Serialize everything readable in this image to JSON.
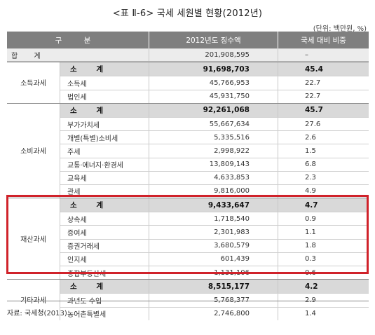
{
  "title": "<표 Ⅱ-6> 국세 세원별 현황(2012년)",
  "unit": "(단위: 백만원, %)",
  "header": {
    "division": "구 분",
    "amount": "2012년도 징수액",
    "ratio": "국세 대비 비중"
  },
  "grand_total": {
    "label": "합 계",
    "amount": "201,908,595",
    "ratio": "–"
  },
  "sections": [
    {
      "name": "소득과세",
      "rows": [
        {
          "item": "소 계",
          "amount": "91,698,703",
          "ratio": "45.4",
          "subtotal": true
        },
        {
          "item": "소득세",
          "amount": "45,766,953",
          "ratio": "22.7"
        },
        {
          "item": "법인세",
          "amount": "45,931,750",
          "ratio": "22.7"
        }
      ]
    },
    {
      "name": "소비과세",
      "rows": [
        {
          "item": "소 계",
          "amount": "92,261,068",
          "ratio": "45.7",
          "subtotal": true
        },
        {
          "item": "부가가치세",
          "amount": "55,667,634",
          "ratio": "27.6"
        },
        {
          "item": "개별(특별)소비세",
          "amount": "5,335,516",
          "ratio": "2.6"
        },
        {
          "item": "주세",
          "amount": "2,998,922",
          "ratio": "1.5"
        },
        {
          "item": "교통·에너지·환경세",
          "amount": "13,809,143",
          "ratio": "6.8"
        },
        {
          "item": "교육세",
          "amount": "4,633,853",
          "ratio": "2.3"
        },
        {
          "item": "관세",
          "amount": "9,816,000",
          "ratio": "4.9"
        }
      ]
    },
    {
      "name": "재산과세",
      "rows": [
        {
          "item": "소 계",
          "amount": "9,433,647",
          "ratio": "4.7",
          "subtotal": true
        },
        {
          "item": "상속세",
          "amount": "1,718,540",
          "ratio": "0.9"
        },
        {
          "item": "증여세",
          "amount": "2,301,983",
          "ratio": "1.1"
        },
        {
          "item": "증권거래세",
          "amount": "3,680,579",
          "ratio": "1.8"
        },
        {
          "item": "인지세",
          "amount": "601,439",
          "ratio": "0.3"
        },
        {
          "item": "종합부동산세",
          "amount": "1,131,106",
          "ratio": "0.6"
        }
      ]
    },
    {
      "name": "기타과세",
      "rows": [
        {
          "item": "소 계",
          "amount": "8,515,177",
          "ratio": "4.2",
          "subtotal": true
        },
        {
          "item": "과년도 수입",
          "amount": "5,768,377",
          "ratio": "2.9"
        },
        {
          "item": "농어촌특별세",
          "amount": "2,746,800",
          "ratio": "1.4"
        }
      ]
    }
  ],
  "source": "자료: 국세청(2013)",
  "colors": {
    "header_bg": "#7f7f7f",
    "subtotal_bg": "#d9d9d9",
    "highlight": "#d0222a"
  }
}
